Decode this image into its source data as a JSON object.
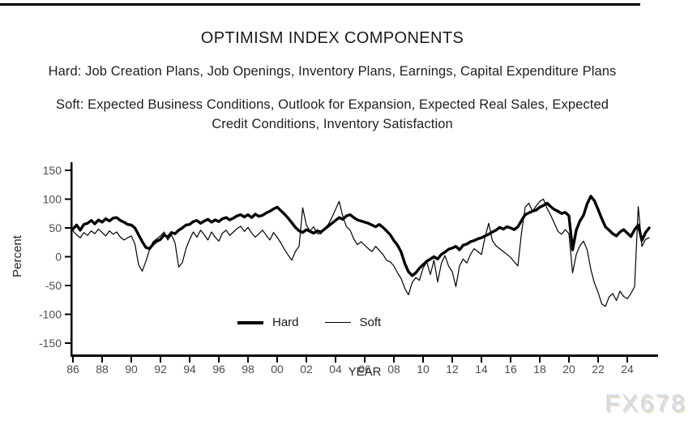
{
  "page": {
    "title": "OPTIMISM INDEX COMPONENTS",
    "hard_description": "Hard: Job Creation Plans, Job Openings, Inventory Plans, Earnings, Capital Expenditure Plans",
    "soft_description_line1": "Soft: Expected Business Conditions, Outlook for Expansion, Expected Real Sales, Expected",
    "soft_description_line2": "Credit Conditions, Inventory Satisfaction",
    "watermark": "FX678"
  },
  "legend": {
    "hard_label": "Hard",
    "soft_label": "Soft"
  },
  "colors": {
    "line": "#000000",
    "tick_label": "#4d4d4d",
    "axis_title": "#262626",
    "text": "#1f1f1f",
    "watermark": "#ccd9e6",
    "watermark_shadow": "#edd9c2"
  },
  "chart_data": {
    "type": "line",
    "title": "OPTIMISM INDEX COMPONENTS",
    "xlabel": "YEAR",
    "ylabel": "Percent",
    "ylim": [
      -150,
      150
    ],
    "xlim": [
      1986,
      2025.5
    ],
    "grid": false,
    "legend_position": "bottom-center",
    "yticks": [
      150,
      100,
      50,
      0,
      -50,
      -100,
      -150
    ],
    "xtick_labels": [
      "86",
      "88",
      "90",
      "92",
      "94",
      "96",
      "98",
      "00",
      "02",
      "04",
      "06",
      "08",
      "10",
      "12",
      "14",
      "16",
      "18",
      "20",
      "22",
      "24"
    ],
    "x_start": 1986,
    "x_step": 0.25,
    "series": [
      {
        "name": "Hard",
        "stroke_width": 3.4,
        "values": [
          48,
          55,
          46,
          56,
          58,
          63,
          57,
          64,
          60,
          66,
          62,
          67,
          68,
          63,
          60,
          56,
          55,
          50,
          38,
          26,
          16,
          14,
          22,
          27,
          30,
          38,
          34,
          42,
          40,
          46,
          50,
          55,
          56,
          61,
          63,
          58,
          62,
          65,
          60,
          64,
          61,
          66,
          68,
          64,
          67,
          71,
          73,
          69,
          73,
          68,
          74,
          70,
          72,
          76,
          79,
          83,
          86,
          80,
          74,
          67,
          59,
          51,
          45,
          42,
          47,
          44,
          41,
          45,
          43,
          48,
          53,
          58,
          63,
          68,
          65,
          71,
          73,
          68,
          64,
          62,
          60,
          58,
          55,
          52,
          56,
          51,
          45,
          38,
          28,
          20,
          8,
          -12,
          -26,
          -33,
          -28,
          -20,
          -14,
          -8,
          -4,
          0,
          -4,
          4,
          8,
          13,
          15,
          18,
          12,
          20,
          22,
          26,
          28,
          31,
          33,
          36,
          39,
          43,
          46,
          51,
          48,
          52,
          50,
          47,
          52,
          63,
          73,
          76,
          79,
          81,
          86,
          89,
          93,
          87,
          82,
          79,
          75,
          77,
          71,
          12,
          46,
          62,
          72,
          92,
          105,
          97,
          82,
          66,
          52,
          46,
          40,
          36,
          43,
          47,
          41,
          35,
          47,
          55,
          28,
          42,
          50
        ]
      },
      {
        "name": "Soft",
        "stroke_width": 1.2,
        "values": [
          45,
          38,
          33,
          42,
          37,
          45,
          40,
          48,
          42,
          36,
          45,
          39,
          43,
          34,
          29,
          33,
          36,
          22,
          -14,
          -25,
          -8,
          12,
          26,
          31,
          36,
          43,
          29,
          38,
          24,
          -18,
          -10,
          14,
          30,
          43,
          34,
          46,
          38,
          29,
          43,
          34,
          27,
          41,
          46,
          37,
          43,
          49,
          53,
          44,
          51,
          41,
          34,
          40,
          46,
          37,
          29,
          42,
          34,
          24,
          13,
          3,
          -6,
          9,
          18,
          85,
          55,
          45,
          52,
          40,
          40,
          49,
          56,
          68,
          82,
          96,
          70,
          52,
          46,
          31,
          21,
          26,
          20,
          14,
          9,
          18,
          11,
          4,
          -6,
          -9,
          -16,
          -28,
          -38,
          -55,
          -66,
          -45,
          -36,
          -41,
          -20,
          -9,
          -31,
          -6,
          -44,
          -12,
          2,
          -16,
          -26,
          -52,
          -16,
          -4,
          -11,
          4,
          14,
          9,
          4,
          34,
          58,
          28,
          19,
          14,
          9,
          4,
          -1,
          -9,
          -16,
          42,
          86,
          93,
          79,
          88,
          96,
          100,
          84,
          72,
          58,
          44,
          39,
          47,
          40,
          -28,
          4,
          19,
          27,
          12,
          -22,
          -46,
          -62,
          -82,
          -86,
          -70,
          -64,
          -76,
          -60,
          -69,
          -73,
          -64,
          -52,
          87,
          18,
          30,
          33
        ]
      }
    ]
  }
}
